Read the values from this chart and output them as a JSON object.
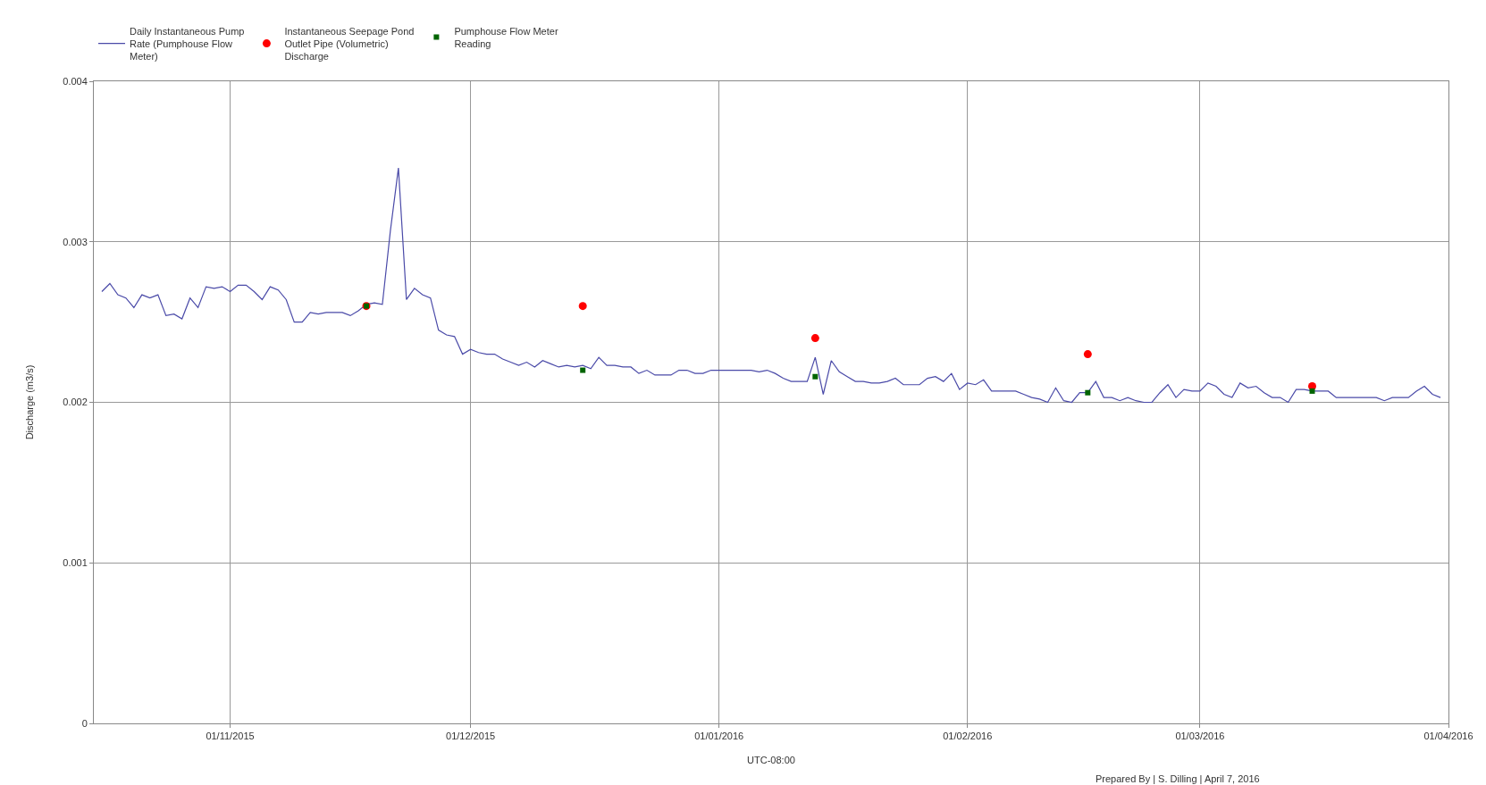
{
  "chart_data": {
    "type": "line",
    "xlabel": "UTC-08:00",
    "ylabel": "Discharge (m3/s)",
    "annotations": [
      "Prepared By | S. Dilling | April 7, 2016"
    ],
    "xlim": [
      "2015-10-15",
      "2016-04-01"
    ],
    "xticks": [
      {
        "value": "2015-11-01",
        "label": "01/11/2015"
      },
      {
        "value": "2015-12-01",
        "label": "01/12/2015"
      },
      {
        "value": "2016-01-01",
        "label": "01/01/2016"
      },
      {
        "value": "2016-02-01",
        "label": "01/02/2016"
      },
      {
        "value": "2016-03-01",
        "label": "01/03/2016"
      },
      {
        "value": "2016-04-01",
        "label": "01/04/2016"
      }
    ],
    "ylim": [
      0,
      0.004
    ],
    "yticks": [
      0,
      0.001,
      0.002,
      0.003,
      0.004
    ],
    "grid": true,
    "legend": "top left",
    "series": [
      {
        "name": "Daily Instantaneous Pump Rate (Pumphouse Flow Meter)",
        "color": "#4a4aa8",
        "marker": "none",
        "line_style": "solid",
        "x": [
          "2015-10-16",
          "2015-10-17",
          "2015-10-18",
          "2015-10-19",
          "2015-10-20",
          "2015-10-21",
          "2015-10-22",
          "2015-10-23",
          "2015-10-24",
          "2015-10-25",
          "2015-10-26",
          "2015-10-27",
          "2015-10-28",
          "2015-10-29",
          "2015-10-30",
          "2015-10-31",
          "2015-11-01",
          "2015-11-02",
          "2015-11-03",
          "2015-11-04",
          "2015-11-05",
          "2015-11-06",
          "2015-11-07",
          "2015-11-08",
          "2015-11-09",
          "2015-11-10",
          "2015-11-11",
          "2015-11-12",
          "2015-11-13",
          "2015-11-14",
          "2015-11-15",
          "2015-11-16",
          "2015-11-17",
          "2015-11-18",
          "2015-11-19",
          "2015-11-20",
          "2015-11-21",
          "2015-11-22",
          "2015-11-23",
          "2015-11-24",
          "2015-11-25",
          "2015-11-26",
          "2015-11-27",
          "2015-11-28",
          "2015-11-29",
          "2015-11-30",
          "2015-12-01",
          "2015-12-02",
          "2015-12-03",
          "2015-12-04",
          "2015-12-05",
          "2015-12-06",
          "2015-12-07",
          "2015-12-08",
          "2015-12-09",
          "2015-12-10",
          "2015-12-11",
          "2015-12-12",
          "2015-12-13",
          "2015-12-14",
          "2015-12-15",
          "2015-12-16",
          "2015-12-17",
          "2015-12-18",
          "2015-12-19",
          "2015-12-20",
          "2015-12-21",
          "2015-12-22",
          "2015-12-23",
          "2015-12-24",
          "2015-12-25",
          "2015-12-26",
          "2015-12-27",
          "2015-12-28",
          "2015-12-29",
          "2015-12-30",
          "2015-12-31",
          "2016-01-01",
          "2016-01-02",
          "2016-01-03",
          "2016-01-04",
          "2016-01-05",
          "2016-01-06",
          "2016-01-07",
          "2016-01-08",
          "2016-01-09",
          "2016-01-10",
          "2016-01-11",
          "2016-01-12",
          "2016-01-13",
          "2016-01-14",
          "2016-01-15",
          "2016-01-16",
          "2016-01-17",
          "2016-01-18",
          "2016-01-19",
          "2016-01-20",
          "2016-01-21",
          "2016-01-22",
          "2016-01-23",
          "2016-01-24",
          "2016-01-25",
          "2016-01-26",
          "2016-01-27",
          "2016-01-28",
          "2016-01-29",
          "2016-01-30",
          "2016-01-31",
          "2016-02-01",
          "2016-02-02",
          "2016-02-03",
          "2016-02-04",
          "2016-02-05",
          "2016-02-06",
          "2016-02-07",
          "2016-02-08",
          "2016-02-09",
          "2016-02-10",
          "2016-02-11",
          "2016-02-12",
          "2016-02-13",
          "2016-02-14",
          "2016-02-15",
          "2016-02-16",
          "2016-02-17",
          "2016-02-18",
          "2016-02-19",
          "2016-02-20",
          "2016-02-21",
          "2016-02-22",
          "2016-02-23",
          "2016-02-24",
          "2016-02-25",
          "2016-02-26",
          "2016-02-27",
          "2016-02-28",
          "2016-02-29",
          "2016-03-01",
          "2016-03-02",
          "2016-03-03",
          "2016-03-04",
          "2016-03-05",
          "2016-03-06",
          "2016-03-07",
          "2016-03-08",
          "2016-03-09",
          "2016-03-10",
          "2016-03-11",
          "2016-03-12",
          "2016-03-13",
          "2016-03-14",
          "2016-03-15",
          "2016-03-16",
          "2016-03-17",
          "2016-03-18",
          "2016-03-19",
          "2016-03-20",
          "2016-03-21",
          "2016-03-22",
          "2016-03-23",
          "2016-03-24",
          "2016-03-25",
          "2016-03-26",
          "2016-03-27",
          "2016-03-28",
          "2016-03-29",
          "2016-03-30",
          "2016-03-31"
        ],
        "values": [
          0.00269,
          0.00274,
          0.00267,
          0.00265,
          0.00259,
          0.00267,
          0.00265,
          0.00267,
          0.00254,
          0.00255,
          0.00252,
          0.00265,
          0.00259,
          0.00272,
          0.00271,
          0.00272,
          0.00269,
          0.00273,
          0.00273,
          0.00269,
          0.00264,
          0.00272,
          0.0027,
          0.00264,
          0.0025,
          0.0025,
          0.00256,
          0.00255,
          0.00256,
          0.00256,
          0.00256,
          0.00254,
          0.00257,
          0.00261,
          0.00262,
          0.00261,
          0.00307,
          0.00346,
          0.00264,
          0.00271,
          0.00267,
          0.00265,
          0.00245,
          0.00242,
          0.00241,
          0.0023,
          0.00233,
          0.00231,
          0.0023,
          0.0023,
          0.00227,
          0.00225,
          0.00223,
          0.00225,
          0.00222,
          0.00226,
          0.00224,
          0.00222,
          0.00223,
          0.00222,
          0.00223,
          0.00221,
          0.00228,
          0.00223,
          0.00223,
          0.00222,
          0.00222,
          0.00218,
          0.0022,
          0.00217,
          0.00217,
          0.00217,
          0.0022,
          0.0022,
          0.00218,
          0.00218,
          0.0022,
          0.0022,
          0.0022,
          0.0022,
          0.0022,
          0.0022,
          0.00219,
          0.0022,
          0.00218,
          0.00215,
          0.00213,
          0.00213,
          0.00213,
          0.00228,
          0.00205,
          0.00226,
          0.00219,
          0.00216,
          0.00213,
          0.00213,
          0.00212,
          0.00212,
          0.00213,
          0.00215,
          0.00211,
          0.00211,
          0.00211,
          0.00215,
          0.00216,
          0.00213,
          0.00218,
          0.00208,
          0.00212,
          0.00211,
          0.00214,
          0.00207,
          0.00207,
          0.00207,
          0.00207,
          0.00205,
          0.00203,
          0.00202,
          0.002,
          0.00209,
          0.00201,
          0.002,
          0.00206,
          0.00206,
          0.00213,
          0.00203,
          0.00203,
          0.00201,
          0.00203,
          0.00201,
          0.002,
          0.002,
          0.00206,
          0.00211,
          0.00203,
          0.00208,
          0.00207,
          0.00207,
          0.00212,
          0.0021,
          0.00205,
          0.00203,
          0.00212,
          0.00209,
          0.0021,
          0.00206,
          0.00203,
          0.00203,
          0.002,
          0.00208,
          0.00208,
          0.00207,
          0.00207,
          0.00207,
          0.00203,
          0.00203,
          0.00203,
          0.00203,
          0.00203,
          0.00203,
          0.00201,
          0.00203,
          0.00203,
          0.00203,
          0.00207,
          0.0021,
          0.00205,
          0.00203
        ]
      },
      {
        "name": "Instantaneous Seepage Pond Outlet Pipe (Volumetric) Discharge",
        "type": "scatter",
        "color": "#ff0000",
        "marker": "circle",
        "x": [
          "2015-11-18",
          "2015-12-15",
          "2016-01-13",
          "2016-02-16",
          "2016-03-15"
        ],
        "values": [
          0.0026,
          0.0026,
          0.0024,
          0.0023,
          0.0021
        ]
      },
      {
        "name": "Pumphouse Flow Meter Reading",
        "type": "scatter",
        "color": "#006400",
        "marker": "square",
        "x": [
          "2015-11-18",
          "2015-12-15",
          "2016-01-13",
          "2016-02-16",
          "2016-03-15"
        ],
        "values": [
          0.0026,
          0.0022,
          0.00216,
          0.00206,
          0.00207
        ]
      }
    ]
  }
}
